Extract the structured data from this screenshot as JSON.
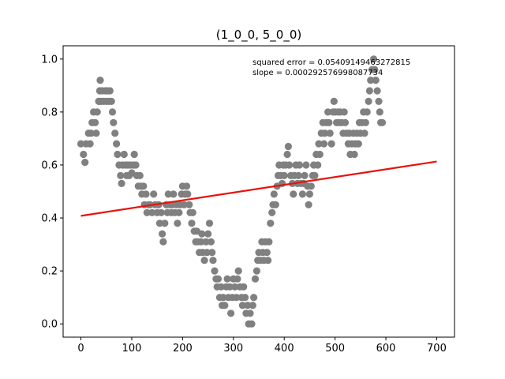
{
  "chart_data": {
    "type": "scatter",
    "title": "(1_0_0, 5_0_0)",
    "xlabel": "",
    "ylabel": "",
    "xlim": [
      -35,
      735
    ],
    "ylim": [
      -0.05,
      1.05
    ],
    "xticks": [
      0,
      100,
      200,
      300,
      400,
      500,
      600,
      700
    ],
    "yticks": [
      0.0,
      0.2,
      0.4,
      0.6,
      0.8,
      1.0
    ],
    "ytick_labels": [
      "0.0",
      "0.2",
      "0.4",
      "0.6",
      "0.8",
      "1.0"
    ],
    "grid": false,
    "annotations": [
      "squared error = 0.05409149463272815",
      "slope = 0.000292576998087734"
    ],
    "colors": {
      "points": "#808080",
      "fit_line": "#e8120c"
    },
    "fit_line": {
      "x": [
        0,
        700
      ],
      "y": [
        0.408,
        0.613
      ]
    },
    "points": [
      [
        0,
        0.68
      ],
      [
        5,
        0.64
      ],
      [
        8,
        0.61
      ],
      [
        10,
        0.68
      ],
      [
        15,
        0.72
      ],
      [
        18,
        0.68
      ],
      [
        20,
        0.72
      ],
      [
        22,
        0.76
      ],
      [
        25,
        0.8
      ],
      [
        28,
        0.76
      ],
      [
        30,
        0.72
      ],
      [
        32,
        0.8
      ],
      [
        35,
        0.84
      ],
      [
        37,
        0.88
      ],
      [
        38,
        0.92
      ],
      [
        40,
        0.84
      ],
      [
        42,
        0.88
      ],
      [
        45,
        0.84
      ],
      [
        48,
        0.88
      ],
      [
        50,
        0.84
      ],
      [
        52,
        0.88
      ],
      [
        55,
        0.84
      ],
      [
        57,
        0.88
      ],
      [
        60,
        0.84
      ],
      [
        62,
        0.8
      ],
      [
        64,
        0.76
      ],
      [
        67,
        0.72
      ],
      [
        70,
        0.68
      ],
      [
        72,
        0.64
      ],
      [
        75,
        0.6
      ],
      [
        78,
        0.56
      ],
      [
        80,
        0.53
      ],
      [
        82,
        0.6
      ],
      [
        85,
        0.64
      ],
      [
        88,
        0.6
      ],
      [
        90,
        0.56
      ],
      [
        92,
        0.6
      ],
      [
        95,
        0.56
      ],
      [
        97,
        0.6
      ],
      [
        100,
        0.57
      ],
      [
        103,
        0.6
      ],
      [
        105,
        0.64
      ],
      [
        108,
        0.6
      ],
      [
        110,
        0.56
      ],
      [
        113,
        0.52
      ],
      [
        116,
        0.56
      ],
      [
        118,
        0.52
      ],
      [
        120,
        0.49
      ],
      [
        123,
        0.52
      ],
      [
        125,
        0.45
      ],
      [
        128,
        0.49
      ],
      [
        130,
        0.42
      ],
      [
        133,
        0.45
      ],
      [
        136,
        0.45
      ],
      [
        140,
        0.42
      ],
      [
        143,
        0.49
      ],
      [
        146,
        0.45
      ],
      [
        150,
        0.42
      ],
      [
        153,
        0.45
      ],
      [
        155,
        0.38
      ],
      [
        158,
        0.42
      ],
      [
        160,
        0.34
      ],
      [
        162,
        0.31
      ],
      [
        165,
        0.38
      ],
      [
        168,
        0.45
      ],
      [
        170,
        0.42
      ],
      [
        172,
        0.49
      ],
      [
        175,
        0.45
      ],
      [
        178,
        0.42
      ],
      [
        180,
        0.45
      ],
      [
        182,
        0.49
      ],
      [
        185,
        0.42
      ],
      [
        188,
        0.45
      ],
      [
        190,
        0.38
      ],
      [
        193,
        0.42
      ],
      [
        195,
        0.45
      ],
      [
        198,
        0.49
      ],
      [
        200,
        0.52
      ],
      [
        203,
        0.45
      ],
      [
        205,
        0.49
      ],
      [
        208,
        0.52
      ],
      [
        210,
        0.49
      ],
      [
        213,
        0.45
      ],
      [
        215,
        0.42
      ],
      [
        218,
        0.38
      ],
      [
        220,
        0.42
      ],
      [
        223,
        0.35
      ],
      [
        226,
        0.31
      ],
      [
        228,
        0.35
      ],
      [
        230,
        0.31
      ],
      [
        233,
        0.27
      ],
      [
        236,
        0.31
      ],
      [
        238,
        0.34
      ],
      [
        240,
        0.27
      ],
      [
        243,
        0.24
      ],
      [
        246,
        0.31
      ],
      [
        248,
        0.27
      ],
      [
        250,
        0.34
      ],
      [
        253,
        0.38
      ],
      [
        256,
        0.31
      ],
      [
        258,
        0.27
      ],
      [
        260,
        0.24
      ],
      [
        263,
        0.2
      ],
      [
        266,
        0.17
      ],
      [
        268,
        0.14
      ],
      [
        270,
        0.17
      ],
      [
        273,
        0.1
      ],
      [
        276,
        0.14
      ],
      [
        278,
        0.07
      ],
      [
        280,
        0.1
      ],
      [
        283,
        0.07
      ],
      [
        286,
        0.14
      ],
      [
        288,
        0.17
      ],
      [
        290,
        0.1
      ],
      [
        293,
        0.14
      ],
      [
        295,
        0.04
      ],
      [
        298,
        0.1
      ],
      [
        300,
        0.17
      ],
      [
        303,
        0.14
      ],
      [
        306,
        0.1
      ],
      [
        308,
        0.17
      ],
      [
        310,
        0.2
      ],
      [
        313,
        0.14
      ],
      [
        316,
        0.1
      ],
      [
        318,
        0.07
      ],
      [
        320,
        0.14
      ],
      [
        323,
        0.1
      ],
      [
        325,
        0.04
      ],
      [
        328,
        0.07
      ],
      [
        330,
        0.0
      ],
      [
        333,
        0.04
      ],
      [
        336,
        0.0
      ],
      [
        338,
        0.07
      ],
      [
        340,
        0.1
      ],
      [
        343,
        0.17
      ],
      [
        346,
        0.2
      ],
      [
        348,
        0.24
      ],
      [
        350,
        0.27
      ],
      [
        353,
        0.24
      ],
      [
        356,
        0.31
      ],
      [
        358,
        0.27
      ],
      [
        360,
        0.24
      ],
      [
        363,
        0.31
      ],
      [
        366,
        0.27
      ],
      [
        368,
        0.24
      ],
      [
        370,
        0.31
      ],
      [
        373,
        0.38
      ],
      [
        376,
        0.42
      ],
      [
        378,
        0.45
      ],
      [
        380,
        0.49
      ],
      [
        383,
        0.45
      ],
      [
        386,
        0.52
      ],
      [
        388,
        0.56
      ],
      [
        390,
        0.6
      ],
      [
        393,
        0.56
      ],
      [
        396,
        0.53
      ],
      [
        398,
        0.6
      ],
      [
        400,
        0.56
      ],
      [
        403,
        0.6
      ],
      [
        406,
        0.64
      ],
      [
        408,
        0.67
      ],
      [
        410,
        0.6
      ],
      [
        413,
        0.56
      ],
      [
        416,
        0.53
      ],
      [
        418,
        0.49
      ],
      [
        420,
        0.56
      ],
      [
        423,
        0.6
      ],
      [
        426,
        0.53
      ],
      [
        428,
        0.56
      ],
      [
        430,
        0.6
      ],
      [
        433,
        0.53
      ],
      [
        436,
        0.49
      ],
      [
        438,
        0.53
      ],
      [
        440,
        0.56
      ],
      [
        443,
        0.6
      ],
      [
        446,
        0.52
      ],
      [
        448,
        0.45
      ],
      [
        450,
        0.49
      ],
      [
        453,
        0.52
      ],
      [
        456,
        0.56
      ],
      [
        458,
        0.6
      ],
      [
        460,
        0.56
      ],
      [
        463,
        0.64
      ],
      [
        466,
        0.6
      ],
      [
        468,
        0.68
      ],
      [
        470,
        0.64
      ],
      [
        473,
        0.72
      ],
      [
        476,
        0.76
      ],
      [
        478,
        0.68
      ],
      [
        480,
        0.72
      ],
      [
        483,
        0.76
      ],
      [
        486,
        0.8
      ],
      [
        488,
        0.76
      ],
      [
        490,
        0.72
      ],
      [
        493,
        0.68
      ],
      [
        496,
        0.8
      ],
      [
        498,
        0.84
      ],
      [
        500,
        0.8
      ],
      [
        503,
        0.76
      ],
      [
        506,
        0.8
      ],
      [
        508,
        0.76
      ],
      [
        510,
        0.8
      ],
      [
        513,
        0.76
      ],
      [
        516,
        0.72
      ],
      [
        518,
        0.8
      ],
      [
        520,
        0.76
      ],
      [
        523,
        0.72
      ],
      [
        526,
        0.68
      ],
      [
        528,
        0.72
      ],
      [
        530,
        0.64
      ],
      [
        533,
        0.68
      ],
      [
        536,
        0.72
      ],
      [
        538,
        0.64
      ],
      [
        540,
        0.68
      ],
      [
        543,
        0.72
      ],
      [
        546,
        0.68
      ],
      [
        548,
        0.76
      ],
      [
        550,
        0.72
      ],
      [
        553,
        0.76
      ],
      [
        556,
        0.8
      ],
      [
        558,
        0.72
      ],
      [
        560,
        0.76
      ],
      [
        563,
        0.8
      ],
      [
        566,
        0.84
      ],
      [
        568,
        0.88
      ],
      [
        570,
        0.92
      ],
      [
        573,
        0.96
      ],
      [
        576,
        1.0
      ],
      [
        578,
        0.96
      ],
      [
        580,
        0.92
      ],
      [
        583,
        0.88
      ],
      [
        586,
        0.84
      ],
      [
        588,
        0.8
      ],
      [
        590,
        0.76
      ],
      [
        593,
        0.76
      ]
    ]
  }
}
